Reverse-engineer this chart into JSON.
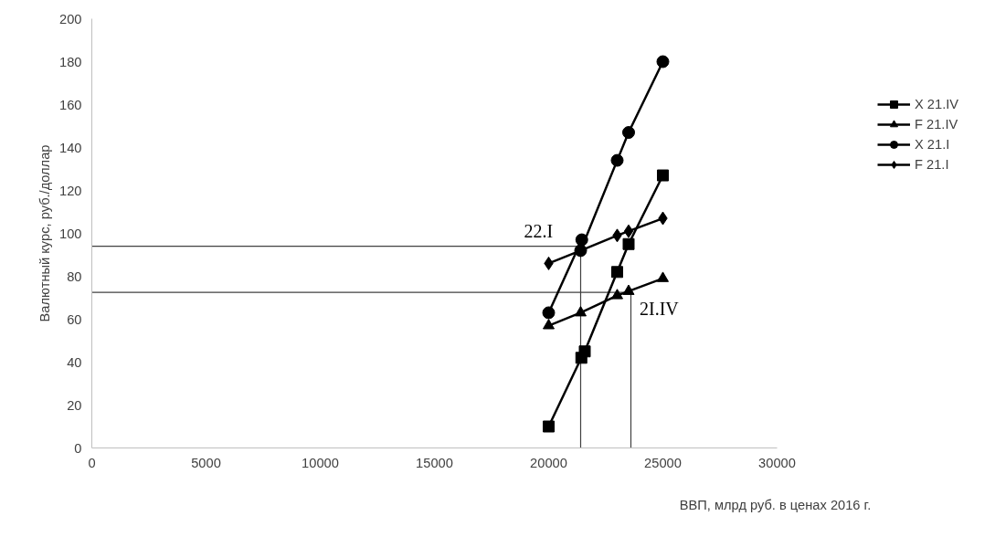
{
  "chart_data": {
    "type": "line",
    "xlabel": "ВВП, млрд  руб. в ценах 2016 г.",
    "ylabel": "Валютный курс, руб./доллар",
    "xlim": [
      0,
      30000
    ],
    "xticks": [
      0,
      5000,
      10000,
      15000,
      20000,
      25000,
      30000
    ],
    "ylim": [
      0,
      200
    ],
    "yticks": [
      0,
      20,
      40,
      60,
      80,
      100,
      120,
      140,
      160,
      180,
      200
    ],
    "grid": false,
    "legend": "right",
    "series": [
      {
        "name": "X 21.IV",
        "color": "#000000",
        "marker": "square",
        "x": [
          20000,
          21430,
          21580,
          23000,
          23500,
          25000
        ],
        "values": [
          10,
          42,
          45,
          82,
          95,
          127
        ]
      },
      {
        "name": "F 21.IV",
        "color": "#000000",
        "marker": "triangle",
        "x": [
          20000,
          21400,
          23000,
          23500,
          25000
        ],
        "values": [
          57,
          63,
          71,
          73,
          79
        ]
      },
      {
        "name": "X 21.I",
        "color": "#000000",
        "marker": "circle",
        "x": [
          20000,
          21450,
          21400,
          23000,
          23500,
          25000
        ],
        "values": [
          63,
          97,
          92,
          134,
          147,
          180
        ]
      },
      {
        "name": "F 21.I",
        "color": "#000000",
        "marker": "diamond",
        "x": [
          20000,
          21400,
          23000,
          23500,
          25000
        ],
        "values": [
          86,
          92,
          99,
          101,
          107
        ]
      }
    ],
    "ref_lines": [
      {
        "axis": "y",
        "value": 94,
        "color": "#404040"
      },
      {
        "axis": "y",
        "value": 72.5,
        "color": "#404040"
      },
      {
        "axis": "x",
        "value": 21400,
        "color": "#404040"
      },
      {
        "axis": "x",
        "value": 23600,
        "color": "#404040"
      }
    ],
    "annotations": [
      {
        "text": "22.I",
        "x": 21400,
        "y": 92
      },
      {
        "text": "2I.IV",
        "x": 23500,
        "y": 73
      }
    ]
  }
}
